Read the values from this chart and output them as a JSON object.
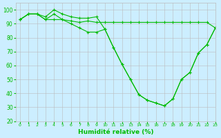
{
  "xlabel": "Humidité relative (%)",
  "background_color": "#cceeff",
  "grid_color": "#bbbbbb",
  "line_color": "#00bb00",
  "xlim": [
    -0.5,
    23
  ],
  "ylim": [
    20,
    105
  ],
  "yticks": [
    20,
    30,
    40,
    50,
    60,
    70,
    80,
    90,
    100
  ],
  "xticks": [
    0,
    1,
    2,
    3,
    4,
    5,
    6,
    7,
    8,
    9,
    10,
    11,
    12,
    13,
    14,
    15,
    16,
    17,
    18,
    19,
    20,
    21,
    22,
    23
  ],
  "series": [
    [
      93,
      97,
      97,
      93,
      93,
      93,
      92,
      91,
      92,
      91,
      91,
      91,
      91,
      91,
      91,
      91,
      91,
      91,
      91,
      91,
      91,
      91,
      91,
      87
    ],
    [
      93,
      97,
      97,
      95,
      100,
      97,
      95,
      94,
      94,
      95,
      86,
      73,
      61,
      50,
      39,
      35,
      33,
      31,
      36,
      50,
      55,
      69,
      75,
      87
    ],
    [
      93,
      97,
      97,
      93,
      97,
      93,
      90,
      87,
      84,
      84,
      86,
      73,
      61,
      50,
      39,
      35,
      33,
      31,
      36,
      50,
      55,
      69,
      75,
      87
    ]
  ]
}
